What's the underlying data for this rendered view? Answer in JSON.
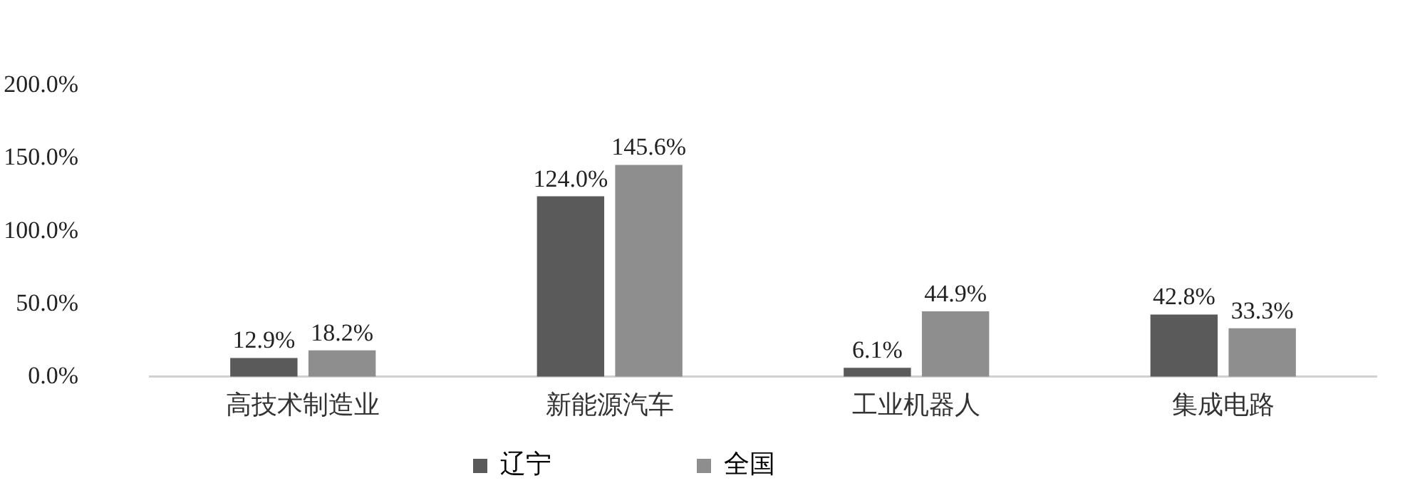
{
  "chart_data": {
    "type": "bar",
    "categories": [
      "高技术制造业",
      "新能源汽车",
      "工业机器人",
      "集成电路"
    ],
    "series": [
      {
        "name": "辽宁",
        "color": "#5a5a5a",
        "values": [
          12.9,
          124.0,
          6.1,
          42.8
        ],
        "value_labels": [
          "12.9%",
          "124.0%",
          "6.1%",
          "42.8%"
        ]
      },
      {
        "name": "全国",
        "color": "#8e8e8e",
        "values": [
          18.2,
          145.6,
          44.9,
          33.3
        ],
        "value_labels": [
          "18.2%",
          "145.6%",
          "44.9%",
          "33.3%"
        ]
      }
    ],
    "ylim": [
      0,
      200
    ],
    "yticks": [
      {
        "value": 0,
        "label": "0.0%"
      },
      {
        "value": 50,
        "label": "50.0%"
      },
      {
        "value": 100,
        "label": "100.0%"
      },
      {
        "value": 150,
        "label": "150.0%"
      },
      {
        "value": 200,
        "label": "200.0%"
      }
    ],
    "grid": false,
    "legend": "bottom"
  }
}
